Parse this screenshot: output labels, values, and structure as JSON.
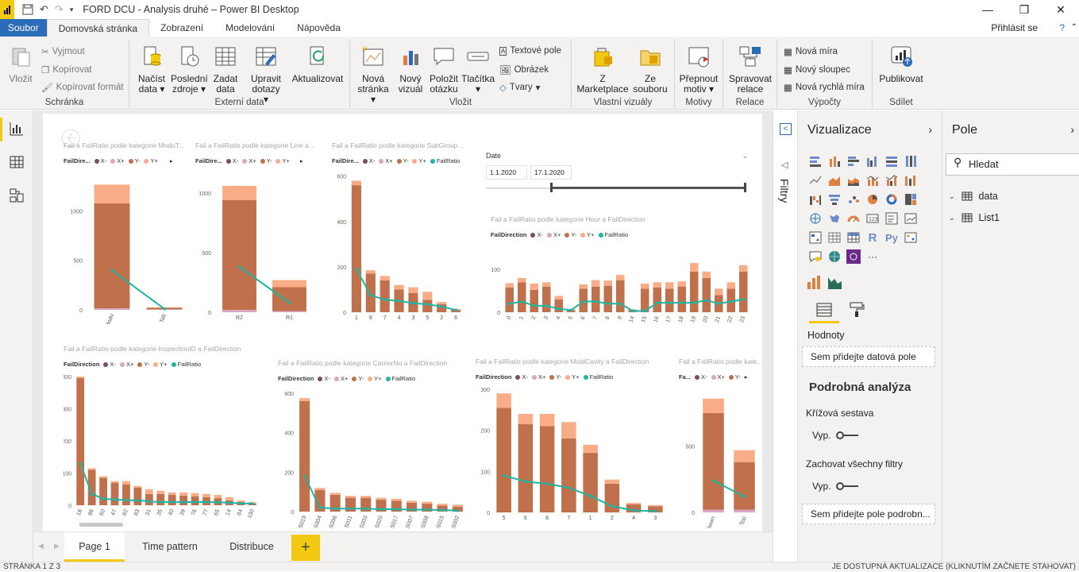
{
  "app": {
    "title": "FORD DCU - Analysis druhé – Power BI Desktop",
    "window_controls": [
      "—",
      "❐",
      "✕"
    ]
  },
  "menu": {
    "file": "Soubor",
    "tabs": [
      "Domovská stránka",
      "Zobrazení",
      "Modelování",
      "Nápověda"
    ],
    "signin": "Přihlásit se",
    "help": "?"
  },
  "ribbon": {
    "clipboard": {
      "label": "Schránka",
      "paste": "Vložit",
      "cut": "Vyjmout",
      "copy": "Kopírovat",
      "format": "Kopírovat formát"
    },
    "external": {
      "label": "Externí data",
      "load1": "Načíst",
      "load2": "data",
      "recent1": "Poslední",
      "recent2": "zdroje",
      "enter1": "Zadat",
      "enter2": "data",
      "edit1": "Upravit",
      "edit2": "dotazy",
      "refresh": "Aktualizovat"
    },
    "insert": {
      "label": "Vložit",
      "newpage1": "Nová",
      "newpage2": "stránka",
      "newvis1": "Nový",
      "newvis2": "vizuál",
      "ask1": "Položit",
      "ask2": "otázku",
      "buttons": "Tlačítka",
      "textbox": "Textové pole",
      "image": "Obrázek",
      "shapes": "Tvary"
    },
    "custom": {
      "label": "Vlastní vizuály",
      "market1": "Z",
      "market2": "Marketplace",
      "file1": "Ze",
      "file2": "souboru"
    },
    "themes": {
      "label": "Motivy",
      "switch1": "Přepnout",
      "switch2": "motiv"
    },
    "relations": {
      "label": "Relace",
      "manage1": "Spravovat",
      "manage2": "relace"
    },
    "calc": {
      "label": "Výpočty",
      "measure": "Nová míra",
      "column": "Nový sloupec",
      "quick": "Nová rychlá míra"
    },
    "share": {
      "label": "Sdílet",
      "publish": "Publikovat"
    }
  },
  "colors": {
    "yminus": "#c0704a",
    "yplus": "#f9ad86",
    "xminus": "#7a4a6b",
    "xplus": "#d9a6c4",
    "ratio": "#1fb5a3"
  },
  "legend": {
    "field": "FailDirection",
    "field_short": "FailDire...",
    "field_tiny": "Fa...",
    "xm": "X-",
    "xp": "X+",
    "ym": "Y-",
    "yp": "Y+",
    "ratio": "FailRatio"
  },
  "slicer": {
    "title": "Date",
    "from": "1.1.2020",
    "to": "17.1.2020"
  },
  "chart_data": [
    {
      "type": "bar",
      "title": "Fail a FailRatio podle kategorie ModuT...",
      "categories": [
        "Modu",
        "Tab"
      ],
      "series": [
        {
          "name": "Y-",
          "values": [
            1060,
            15
          ]
        },
        {
          "name": "Y+",
          "values": [
            190,
            5
          ]
        },
        {
          "name": "X+",
          "values": [
            15,
            5
          ]
        },
        {
          "name": "FailRatio",
          "values": [
            400,
            10
          ]
        }
      ],
      "ylim": [
        0,
        1300
      ],
      "yticks": [
        "0",
        "500",
        "1000"
      ]
    },
    {
      "type": "bar",
      "title": "Fail a FailRatio podle kategorie Line a ...",
      "categories": [
        "R2",
        "R1"
      ],
      "series": [
        {
          "name": "Y-",
          "values": [
            920,
            200
          ]
        },
        {
          "name": "Y+",
          "values": [
            120,
            60
          ]
        },
        {
          "name": "X+",
          "values": [
            20,
            10
          ]
        },
        {
          "name": "FailRatio",
          "values": [
            380,
            80
          ]
        }
      ],
      "ylim": [
        0,
        1100
      ],
      "yticks": [
        "0",
        "500",
        "1000"
      ]
    },
    {
      "type": "bar",
      "title": "Fail a FailRatio podle kategorie SubGroup ...",
      "categories": [
        "1",
        "8",
        "7",
        "4",
        "3",
        "5",
        "2",
        "6"
      ],
      "series": [
        {
          "name": "Y-",
          "values": [
            560,
            170,
            140,
            100,
            85,
            55,
            35,
            10
          ]
        },
        {
          "name": "Y+",
          "values": [
            20,
            15,
            20,
            20,
            25,
            35,
            10,
            5
          ]
        },
        {
          "name": "FailRatio",
          "values": [
            190,
            75,
            55,
            50,
            40,
            35,
            25,
            10
          ]
        }
      ],
      "ylim": [
        0,
        620
      ],
      "yticks": [
        "0",
        "200",
        "400",
        "600"
      ]
    },
    {
      "type": "bar",
      "title": "Fail a FailRatio podle kategorie Hour a FailDirection",
      "categories": [
        "0",
        "1",
        "2",
        "3",
        "4",
        "5",
        "6",
        "7",
        "8",
        "9",
        "14",
        "15",
        "16",
        "17",
        "18",
        "19",
        "20",
        "21",
        "22",
        "23"
      ],
      "series": [
        {
          "name": "Y-",
          "values": [
            58,
            70,
            52,
            60,
            30,
            5,
            55,
            60,
            62,
            75,
            5,
            55,
            58,
            55,
            60,
            95,
            80,
            40,
            55,
            95
          ]
        },
        {
          "name": "Y+",
          "values": [
            10,
            10,
            15,
            10,
            8,
            2,
            10,
            15,
            12,
            12,
            2,
            12,
            12,
            15,
            12,
            20,
            15,
            15,
            15,
            15
          ]
        },
        {
          "name": "FailRatio",
          "values": [
            20,
            25,
            15,
            15,
            8,
            5,
            25,
            25,
            20,
            20,
            3,
            3,
            22,
            22,
            22,
            22,
            28,
            20,
            25,
            30
          ]
        }
      ],
      "ylim": [
        0,
        130
      ],
      "yticks": [
        "0",
        "100"
      ]
    },
    {
      "type": "bar",
      "title": "Fail a FailRatio podle kategorie InspectionID a FailDirection",
      "categories": [
        "18",
        "98",
        "60",
        "47",
        "82",
        "83",
        "31",
        "35",
        "40",
        "39",
        "76",
        "77",
        "65",
        "14",
        "84",
        "100"
      ],
      "series": [
        {
          "name": "Y-",
          "values": [
            395,
            110,
            85,
            70,
            65,
            55,
            35,
            35,
            32,
            30,
            28,
            25,
            22,
            15,
            10,
            5
          ]
        },
        {
          "name": "Y+",
          "values": [
            5,
            5,
            5,
            5,
            10,
            5,
            15,
            10,
            8,
            10,
            10,
            10,
            10,
            10,
            5,
            5
          ]
        },
        {
          "name": "FailRatio",
          "values": [
            130,
            35,
            20,
            18,
            16,
            15,
            12,
            10,
            10,
            10,
            10,
            10,
            9,
            8,
            6,
            5
          ]
        }
      ],
      "ylim": [
        0,
        400
      ],
      "yticks": [
        "0",
        "100",
        "200",
        "300",
        "400"
      ]
    },
    {
      "type": "bar",
      "title": "Fail a FailRatio podle kategorie CarrierNo a FailDirection",
      "categories": [
        "S019",
        "S004",
        "S006",
        "S011",
        "S003",
        "S020",
        "S017",
        "S007",
        "S008",
        "S015",
        "S002"
      ],
      "series": [
        {
          "name": "Y-",
          "values": [
            560,
            110,
            85,
            70,
            70,
            60,
            55,
            45,
            40,
            30,
            25
          ]
        },
        {
          "name": "Y+",
          "values": [
            15,
            10,
            10,
            10,
            10,
            10,
            10,
            10,
            10,
            10,
            10
          ]
        },
        {
          "name": "FailRatio",
          "values": [
            180,
            20,
            15,
            15,
            15,
            12,
            12,
            10,
            10,
            8,
            5
          ]
        }
      ],
      "ylim": [
        0,
        620
      ],
      "yticks": [
        "0",
        "200",
        "400",
        "600"
      ]
    },
    {
      "type": "bar",
      "title": "Fail a FailRatio podle kategorie MoldCavity a FailDirection",
      "categories": [
        "5",
        "6",
        "8",
        "7",
        "1",
        "2",
        "4",
        "3"
      ],
      "series": [
        {
          "name": "Y-",
          "values": [
            255,
            215,
            210,
            180,
            145,
            70,
            20,
            15
          ]
        },
        {
          "name": "Y+",
          "values": [
            35,
            25,
            30,
            40,
            20,
            10,
            3,
            3
          ]
        },
        {
          "name": "FailRatio",
          "values": [
            90,
            75,
            70,
            60,
            40,
            15,
            5,
            3
          ]
        }
      ],
      "ylim": [
        0,
        300
      ],
      "yticks": [
        "0",
        "100",
        "200",
        "300"
      ]
    },
    {
      "type": "bar",
      "title": "Fail a FailRatio podle kate...",
      "categories": [
        "Down",
        "Top"
      ],
      "series": [
        {
          "name": "Y-",
          "values": [
            730,
            360
          ]
        },
        {
          "name": "Y+",
          "values": [
            110,
            90
          ]
        },
        {
          "name": "X+",
          "values": [
            20,
            20
          ]
        },
        {
          "name": "FailRatio",
          "values": [
            240,
            120
          ]
        }
      ],
      "ylim": [
        0,
        900
      ],
      "yticks": [
        "0",
        "500"
      ]
    }
  ],
  "pages": {
    "tabs": [
      "Page 1",
      "Time pattern",
      "Distribuce"
    ],
    "add": "+"
  },
  "status": {
    "left": "STRÁNKA 1 Z 3",
    "right": "JE DOSTUPNÁ AKTUALIZACE (KLIKNUTÍM ZAČNETE STAHOVAT)"
  },
  "filters": {
    "label": "Filtry"
  },
  "viz": {
    "title": "Vizualizace",
    "values": "Hodnoty",
    "drop_values": "Sem přidejte datová pole",
    "drill": "Podrobná analýza",
    "cross": "Křížová sestava",
    "off": "Vyp.",
    "keep": "Zachovat všechny filtry",
    "drop_drill": "Sem přidejte pole podrobn..."
  },
  "fields": {
    "title": "Pole",
    "search": "Hledat",
    "tables": [
      "data",
      "List1"
    ]
  }
}
